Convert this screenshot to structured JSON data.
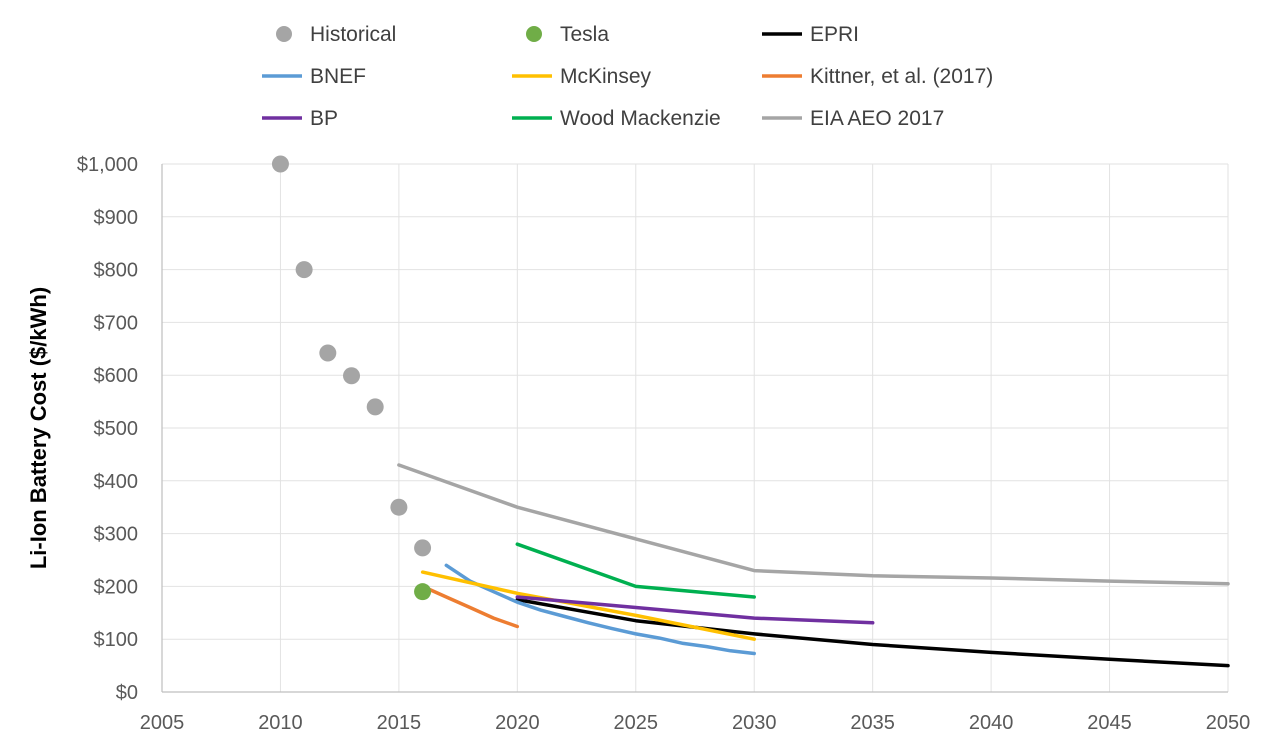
{
  "chart_data": {
    "type": "line",
    "title": "",
    "xlabel": "",
    "ylabel": "Li-Ion Battery Cost ($/kWh)",
    "xlim": [
      2005,
      2050
    ],
    "ylim": [
      0,
      1000
    ],
    "x_ticks": [
      "2005",
      "2010",
      "2015",
      "2020",
      "2025",
      "2030",
      "2035",
      "2040",
      "2045",
      "2050"
    ],
    "y_ticks": [
      "$0",
      "$100",
      "$200",
      "$300",
      "$400",
      "$500",
      "$600",
      "$700",
      "$800",
      "$900",
      "$1,000"
    ],
    "grid": true,
    "legend_position": "top",
    "series": [
      {
        "name": "Historical",
        "kind": "scatter",
        "color": "#a5a5a5",
        "points": [
          [
            2010,
            1000
          ],
          [
            2011,
            800
          ],
          [
            2012,
            642
          ],
          [
            2013,
            599
          ],
          [
            2014,
            540
          ],
          [
            2015,
            350
          ],
          [
            2016,
            273
          ]
        ]
      },
      {
        "name": "Tesla",
        "kind": "scatter",
        "color": "#70ad47",
        "points": [
          [
            2016,
            190
          ]
        ]
      },
      {
        "name": "EPRI",
        "kind": "line",
        "color": "#000000",
        "points": [
          [
            2020,
            175
          ],
          [
            2025,
            135
          ],
          [
            2030,
            110
          ],
          [
            2035,
            90
          ],
          [
            2040,
            75
          ],
          [
            2045,
            62
          ],
          [
            2050,
            50
          ]
        ]
      },
      {
        "name": "BNEF",
        "kind": "line",
        "color": "#5b9bd5",
        "points": [
          [
            2017,
            240
          ],
          [
            2018,
            210
          ],
          [
            2019,
            190
          ],
          [
            2020,
            170
          ],
          [
            2021,
            155
          ],
          [
            2022,
            143
          ],
          [
            2023,
            131
          ],
          [
            2024,
            120
          ],
          [
            2025,
            110
          ],
          [
            2026,
            102
          ],
          [
            2027,
            92
          ],
          [
            2028,
            86
          ],
          [
            2029,
            78
          ],
          [
            2030,
            73
          ]
        ]
      },
      {
        "name": "McKinsey",
        "kind": "line",
        "color": "#ffc000",
        "points": [
          [
            2016,
            227
          ],
          [
            2020,
            187
          ],
          [
            2025,
            145
          ],
          [
            2030,
            100
          ]
        ]
      },
      {
        "name": "Kittner, et al. (2017)",
        "kind": "line",
        "color": "#ed7d31",
        "points": [
          [
            2016,
            200
          ],
          [
            2017,
            180
          ],
          [
            2018,
            160
          ],
          [
            2019,
            140
          ],
          [
            2020,
            124
          ]
        ]
      },
      {
        "name": "BP",
        "kind": "line",
        "color": "#7030a0",
        "points": [
          [
            2020,
            180
          ],
          [
            2025,
            160
          ],
          [
            2030,
            140
          ],
          [
            2035,
            131
          ]
        ]
      },
      {
        "name": "Wood Mackenzie",
        "kind": "line",
        "color": "#00b050",
        "points": [
          [
            2020,
            280
          ],
          [
            2025,
            200
          ],
          [
            2030,
            180
          ]
        ]
      },
      {
        "name": "EIA AEO 2017",
        "kind": "line",
        "color": "#a5a5a5",
        "points": [
          [
            2015,
            430
          ],
          [
            2020,
            350
          ],
          [
            2025,
            290
          ],
          [
            2030,
            230
          ],
          [
            2035,
            220
          ],
          [
            2040,
            216
          ],
          [
            2045,
            210
          ],
          [
            2050,
            205
          ]
        ]
      }
    ]
  }
}
